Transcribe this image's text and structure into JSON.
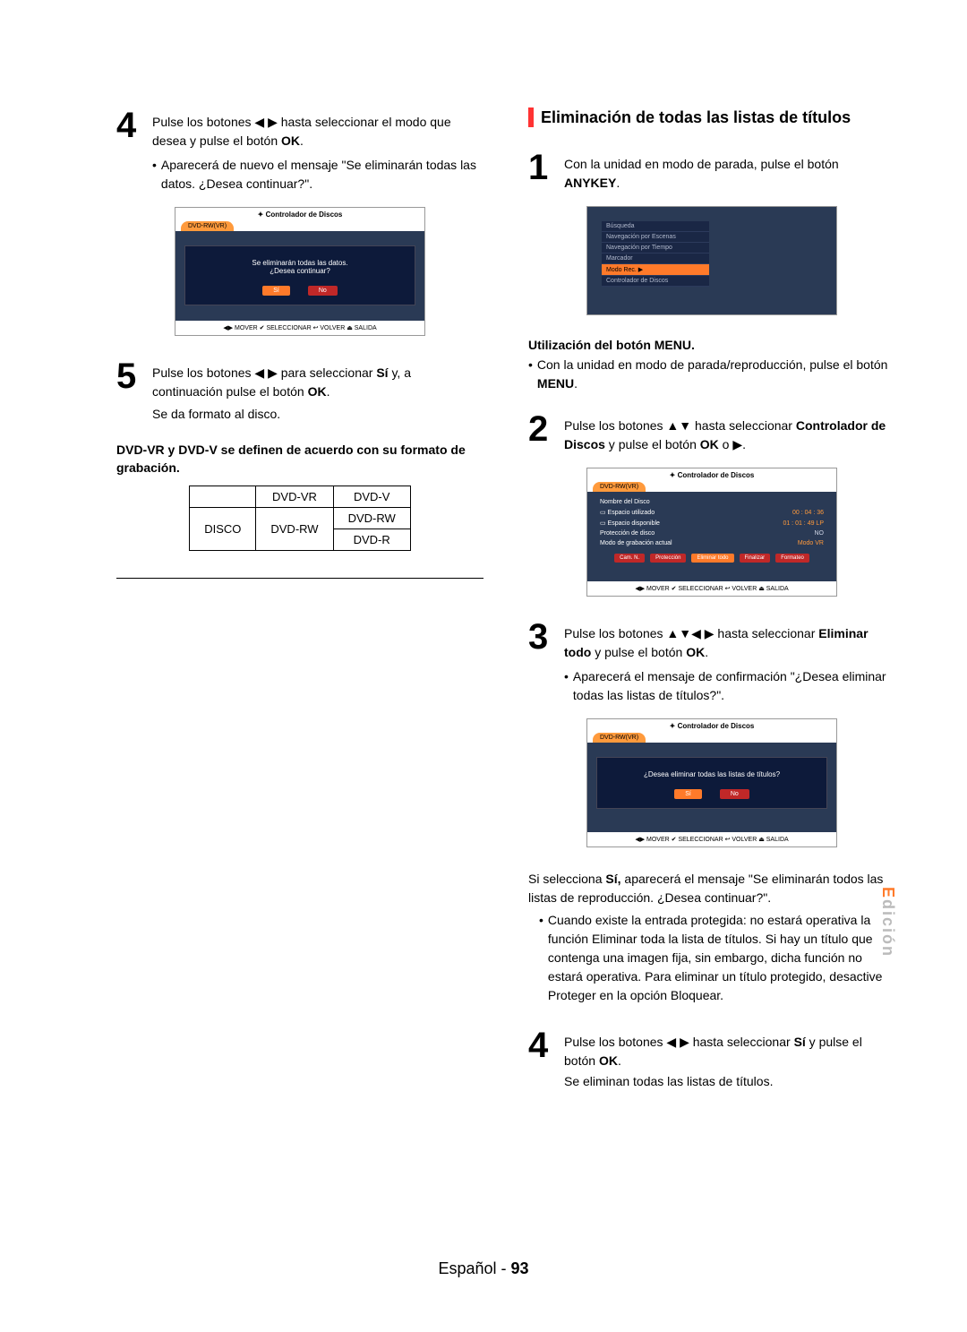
{
  "left": {
    "step4": {
      "num": "4",
      "text_pre": "Pulse los botones ◀ ▶ hasta seleccionar el modo que desea y pulse el botón ",
      "text_bold": "OK",
      "text_post": ".",
      "bullet": "Aparecerá de nuevo el mensaje \"Se eliminarán todas las datos. ¿Desea continuar?\"."
    },
    "osd4": {
      "header": "Controlador de Discos",
      "tab": "DVD-RW(VR)",
      "line1": "Se eliminarán todas las datos.",
      "line2": "¿Desea continuar?",
      "yes": "Sí",
      "no": "No",
      "footer": "◀▶ MOVER   ✔ SELECCIONAR   ↩ VOLVER   ⏏ SALIDA"
    },
    "step5": {
      "num": "5",
      "l1_pre": "Pulse los botones ◀ ▶ para seleccionar ",
      "l1_b1": "Sí",
      "l1_mid": " y, a continuación pulse el botón ",
      "l1_b2": "OK",
      "l1_post": ".",
      "l2": "Se da formato al disco."
    },
    "note": "DVD-VR y DVD-V se definen de acuerdo con su formato de grabación.",
    "table": {
      "h1": "DVD-VR",
      "h2": "DVD-V",
      "r1": "DISCO",
      "c1": "DVD-RW",
      "c2a": "DVD-RW",
      "c2b": "DVD-R"
    }
  },
  "right": {
    "title": "Eliminación de todas las listas de títulos",
    "step1": {
      "num": "1",
      "text_pre": "Con la unidad en modo de parada, pulse el botón ",
      "text_bold": "ANYKEY",
      "text_post": "."
    },
    "osd1": {
      "items": [
        "Búsqueda",
        "Navegación por Escenas",
        "Navegación por Tiempo",
        "Marcador",
        "Modo Rec.        ▶",
        "Controlador de Discos"
      ]
    },
    "menu_sub": {
      "title": "Utilización del botón MENU.",
      "bullet_pre": "Con la unidad en modo de parada/reproducción, pulse el botón ",
      "bullet_bold": "MENU",
      "bullet_post": "."
    },
    "step2": {
      "num": "2",
      "l_pre": "Pulse los botones ▲▼ hasta seleccionar ",
      "l_b1": "Controlador de Discos",
      "l_mid": " y pulse el botón ",
      "l_b2": "OK",
      "l_post": " o ▶."
    },
    "osd2": {
      "header": "Controlador de Discos",
      "tab": "DVD-RW(VR)",
      "rows": [
        {
          "label": "Nombre del Disco",
          "val": ""
        },
        {
          "label": "▭ Espacio utilizado",
          "val": "00 : 04 : 36",
          "orange": true
        },
        {
          "label": "▭ Espacio disponible",
          "val": "01 : 01 : 49 LP",
          "orange": true
        },
        {
          "label": "Protección de disco",
          "val": "NO"
        },
        {
          "label": "Modo de grabación actual",
          "val": "Modo VR",
          "orange": true
        }
      ],
      "btns": [
        "Cam. N.",
        "Protección",
        "Eliminar todo",
        "Finalizar",
        "Formateo"
      ],
      "footer": "◀▶ MOVER   ✔ SELECCIONAR   ↩ VOLVER   ⏏ SALIDA"
    },
    "step3": {
      "num": "3",
      "l_pre": "Pulse los botones ▲▼◀ ▶ hasta seleccionar ",
      "l_b1": "Eliminar todo",
      "l_mid": " y pulse el botón ",
      "l_b2": "OK",
      "l_post": ".",
      "bullet": "Aparecerá el mensaje de confirmación \"¿Desea eliminar todas las listas de títulos?\"."
    },
    "osd3": {
      "header": "Controlador de Discos",
      "tab": "DVD-RW(VR)",
      "line1": "¿Desea eliminar todas las listas de títulos?",
      "yes": "Sí",
      "no": "No",
      "footer": "◀▶ MOVER   ✔ SELECCIONAR   ↩ VOLVER   ⏏ SALIDA"
    },
    "after3_pre": "Si selecciona ",
    "after3_b": "Sí,",
    "after3_post": " aparecerá el mensaje \"Se eliminarán todos las listas de reproducción. ¿Desea continuar?\".",
    "after3_bullet": "Cuando existe la entrada protegida: no estará operativa la función Eliminar toda la lista de títulos. Si hay un título que contenga una imagen fija, sin embargo, dicha función no estará operativa. Para eliminar un título protegido, desactive Proteger en la opción Bloquear.",
    "step4": {
      "num": "4",
      "l_pre": "Pulse los botones ◀ ▶ hasta seleccionar ",
      "l_b1": "Sí",
      "l_mid": " y pulse el botón ",
      "l_b2": "OK",
      "l_post": ".",
      "l2": "Se eliminan todas las listas de títulos."
    }
  },
  "side": {
    "hl": "E",
    "rest": "dición"
  },
  "footer": {
    "lang": "Español",
    "sep": " - ",
    "page": "93"
  },
  "colors": {
    "accent_red": "#ff3333",
    "orange": "#ff7a2a",
    "orange_light": "#ff9a3c",
    "dark_red": "#c02828",
    "panel_bg": "#2a3a55",
    "panel_bg_dark": "#0d1a3a",
    "grey": "#bbbbbb"
  }
}
